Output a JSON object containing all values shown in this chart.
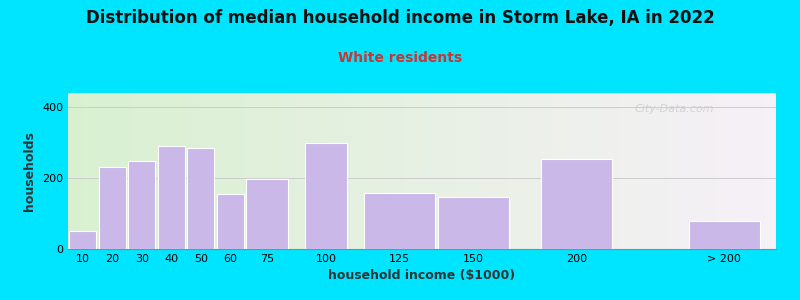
{
  "title": "Distribution of median household income in Storm Lake, IA in 2022",
  "subtitle": "White residents",
  "xlabel": "household income ($1000)",
  "ylabel": "households",
  "bar_labels": [
    "10",
    "20",
    "30",
    "40",
    "50",
    "60",
    "75",
    "100",
    "125",
    "150",
    "200",
    "> 200"
  ],
  "bar_values": [
    50,
    230,
    248,
    290,
    285,
    155,
    198,
    300,
    158,
    148,
    255,
    78
  ],
  "bar_color": "#c9b8e8",
  "bar_edge_color": "#ffffff",
  "background_outer": "#00e5ff",
  "background_inner_left": "#d8f0d0",
  "background_inner_right": "#f5f0f8",
  "yticks": [
    0,
    200,
    400
  ],
  "ylim": [
    0,
    440
  ],
  "title_fontsize": 12,
  "subtitle_fontsize": 10,
  "subtitle_color": "#cc3333",
  "watermark": "City-Data.com",
  "bar_widths": [
    10,
    10,
    10,
    10,
    10,
    10,
    15,
    15,
    25,
    25,
    25,
    25
  ],
  "bar_lefts": [
    5,
    15,
    25,
    35,
    45,
    55,
    65,
    85,
    105,
    130,
    165,
    215
  ]
}
